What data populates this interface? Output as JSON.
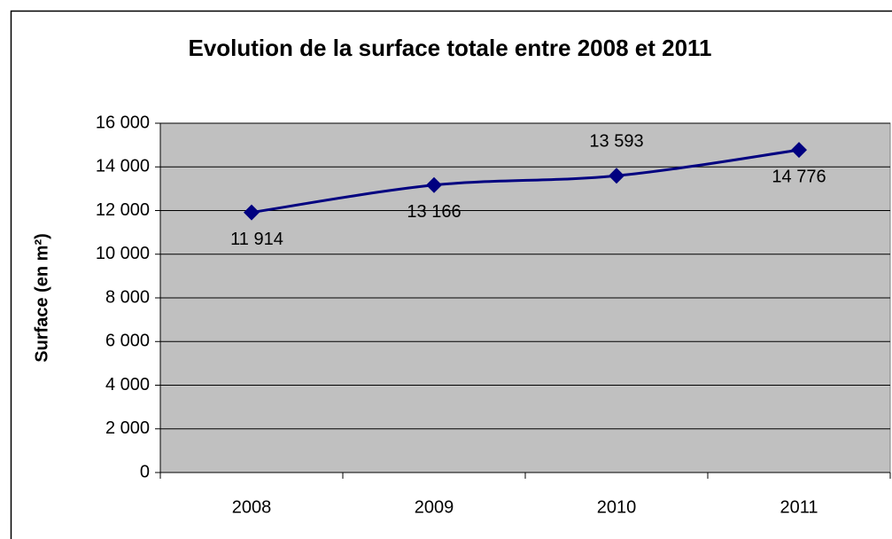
{
  "chart_data": {
    "type": "line",
    "title": "Evolution de la surface totale entre 2008 et 2011",
    "y_label": "Surface (en m²)",
    "categories": [
      "2008",
      "2009",
      "2010",
      "2011"
    ],
    "series": [
      {
        "name": "Surface",
        "color": "#000080",
        "values": [
          11914,
          13166,
          13593,
          14776
        ],
        "value_labels": [
          "11 914",
          "13 166",
          "13 593",
          "14 776"
        ]
      }
    ],
    "ylim": [
      0,
      16000
    ],
    "yticks": [
      {
        "value": 0,
        "label": "0"
      },
      {
        "value": 2000,
        "label": "2 000"
      },
      {
        "value": 4000,
        "label": "4 000"
      },
      {
        "value": 6000,
        "label": "6 000"
      },
      {
        "value": 8000,
        "label": "8 000"
      },
      {
        "value": 10000,
        "label": "10 000"
      },
      {
        "value": 12000,
        "label": "12 000"
      },
      {
        "value": 14000,
        "label": "14 000"
      },
      {
        "value": 16000,
        "label": "16 000"
      }
    ],
    "grid": true
  }
}
